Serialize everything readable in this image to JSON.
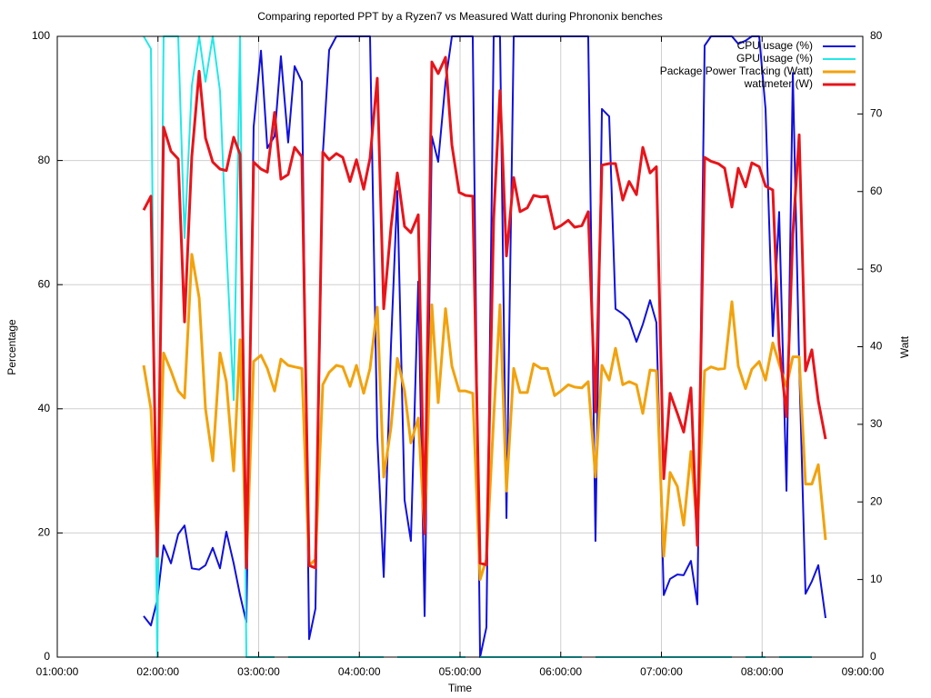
{
  "chart_data": {
    "type": "line",
    "title": "Comparing reported PPT by a Ryzen7 vs Measured Watt during Phrononix benches",
    "xlabel": "Time",
    "ylabel": "Percentage",
    "y2label": "Watt",
    "xlim": [
      1,
      9
    ],
    "xticks": [
      {
        "value": 1,
        "label": "01:00:00"
      },
      {
        "value": 2,
        "label": "02:00:00"
      },
      {
        "value": 3,
        "label": "03:00:00"
      },
      {
        "value": 4,
        "label": "04:00:00"
      },
      {
        "value": 5,
        "label": "05:00:00"
      },
      {
        "value": 6,
        "label": "06:00:00"
      },
      {
        "value": 7,
        "label": "07:00:00"
      },
      {
        "value": 8,
        "label": "08:00:00"
      },
      {
        "value": 9,
        "label": "09:00:00"
      }
    ],
    "ylim": [
      0,
      100
    ],
    "yticks": [
      0,
      20,
      40,
      60,
      80,
      100
    ],
    "y2lim": [
      0,
      80
    ],
    "y2ticks": [
      0,
      10,
      20,
      30,
      40,
      50,
      60,
      70,
      80
    ],
    "grid": true,
    "legend": "top right",
    "x": [
      1.858,
      1.93,
      1.993,
      2.056,
      2.129,
      2.201,
      2.264,
      2.336,
      2.409,
      2.472,
      2.544,
      2.616,
      2.679,
      2.752,
      2.815,
      2.878,
      2.95,
      3.023,
      3.086,
      3.158,
      3.221,
      3.293,
      3.357,
      3.429,
      3.501,
      3.564,
      3.637,
      3.7,
      3.772,
      3.835,
      3.907,
      3.971,
      4.043,
      4.106,
      4.178,
      4.242,
      4.314,
      4.377,
      4.449,
      4.512,
      4.585,
      4.648,
      4.72,
      4.783,
      4.856,
      4.919,
      4.991,
      5.054,
      5.126,
      5.199,
      5.262,
      5.334,
      5.397,
      5.461,
      5.533,
      5.596,
      5.668,
      5.731,
      5.804,
      5.867,
      5.939,
      6.002,
      6.075,
      6.138,
      6.21,
      6.273,
      6.345,
      6.409,
      6.481,
      6.544,
      6.616,
      6.679,
      6.752,
      6.815,
      6.887,
      6.95,
      7.023,
      7.086,
      7.158,
      7.221,
      7.293,
      7.357,
      7.429,
      7.492,
      7.564,
      7.628,
      7.7,
      7.763,
      7.835,
      7.898,
      7.971,
      8.034,
      8.106,
      8.169,
      8.242,
      8.305,
      8.368,
      8.431,
      8.494,
      8.558,
      8.63
    ],
    "series": [
      {
        "name": "CPU usage (%)",
        "color": "#1010dd",
        "values": [
          6.6,
          5.1,
          9.2,
          18,
          15.1,
          19.8,
          21.2,
          14.3,
          14.1,
          14.8,
          17.6,
          14.3,
          20.2,
          15.1,
          10,
          5.6,
          85.4,
          97.7,
          82,
          83.9,
          96.8,
          82.9,
          95.2,
          92.7,
          2.9,
          7.8,
          81,
          97.8,
          100,
          100,
          100,
          100,
          100,
          100,
          35.6,
          12.9,
          50.2,
          75.1,
          25.3,
          18.7,
          60.5,
          6.6,
          83.9,
          79.8,
          92.7,
          100,
          100,
          100,
          100,
          0,
          4.8,
          100,
          100,
          22.4,
          100,
          100,
          100,
          100,
          100,
          100,
          100,
          100,
          100,
          100,
          100,
          100,
          18.7,
          88.3,
          87.1,
          56.1,
          55.3,
          54.3,
          50.8,
          53.6,
          57.5,
          53.9,
          10,
          12.6,
          13.3,
          13.2,
          15.5,
          8.5,
          98.5,
          100,
          100,
          100,
          100,
          98.8,
          99.3,
          100,
          100,
          88.3,
          51.7,
          71.7,
          26.8,
          94.1,
          47.3,
          10.2,
          12.2,
          14.8,
          6.3
        ]
      },
      {
        "name": "GPU usage (%)",
        "color": "#22e8e8",
        "values": [
          100,
          98,
          0,
          100,
          100,
          100,
          67.5,
          92,
          100,
          92.7,
          100,
          91.2,
          66.3,
          41.4,
          100,
          0,
          0,
          0,
          0,
          0,
          null,
          0,
          0,
          0,
          0,
          0,
          0,
          0,
          0,
          0,
          0,
          0,
          0,
          0,
          0,
          0,
          null,
          0,
          0,
          0,
          0,
          0,
          0,
          0,
          0,
          0,
          0,
          0,
          null,
          0,
          0,
          0,
          0,
          0,
          0,
          0,
          0,
          0,
          0,
          0,
          0,
          0,
          0,
          0,
          0,
          null,
          0,
          0,
          0,
          0,
          0,
          0,
          0,
          0,
          0,
          0,
          0,
          0,
          0,
          0,
          0,
          0,
          0,
          0,
          0,
          0,
          0,
          null,
          0,
          0,
          0,
          0,
          null,
          0,
          0,
          0,
          0,
          0,
          0,
          null,
          null
        ]
      },
      {
        "name": "Package Power Tracking (Watt)",
        "color": "#f2a20c",
        "axis": "y2",
        "values": [
          37.6,
          32,
          13.8,
          39.2,
          36.9,
          34.3,
          33.4,
          51.9,
          46.3,
          32,
          25.3,
          39.2,
          35.5,
          24,
          40.9,
          11.5,
          38.1,
          38.9,
          37.2,
          34.3,
          38.4,
          37.6,
          37.4,
          37.2,
          11.8,
          12.6,
          35.1,
          36.7,
          37.6,
          37.4,
          34.9,
          37.6,
          34,
          37.2,
          45.1,
          23.2,
          29.6,
          38.5,
          34.3,
          27.6,
          30.8,
          16,
          45.4,
          32.8,
          44.9,
          37.5,
          34.3,
          34.3,
          34,
          10,
          12.6,
          30.8,
          45.4,
          21.4,
          37.2,
          34.1,
          34.1,
          37.8,
          37.2,
          37.2,
          33.7,
          34.3,
          35.1,
          34.8,
          34.7,
          35.5,
          23.2,
          37.6,
          35.7,
          39.8,
          35.1,
          35.5,
          35.1,
          31.4,
          37,
          36.9,
          13,
          23.8,
          22,
          17,
          26.5,
          16.2,
          36.9,
          37.4,
          37.1,
          37.2,
          45.8,
          37.5,
          34.6,
          37.1,
          38.1,
          35.7,
          40.5,
          37.8,
          34.9,
          38.7,
          38.7,
          22.3,
          22.3,
          24.8,
          15.1
        ]
      },
      {
        "name": "wattmeter (W)",
        "color": "#e8141a",
        "axis": "y2",
        "values": [
          57.6,
          59.4,
          13,
          68.3,
          65.2,
          64.2,
          43.2,
          64.5,
          75.5,
          66.9,
          63.8,
          62.9,
          62.7,
          67,
          64.8,
          11.5,
          63.8,
          62.9,
          62.5,
          70.2,
          61.6,
          62.2,
          65.7,
          64.5,
          11.8,
          11.5,
          65.1,
          64.1,
          64.9,
          64.4,
          61.3,
          64.1,
          60.3,
          64.3,
          74.6,
          44.9,
          55.4,
          62.4,
          55.5,
          54.7,
          57,
          15.9,
          76.7,
          75.2,
          77.3,
          66,
          59.9,
          59.5,
          59.4,
          12.1,
          11.9,
          56.5,
          73,
          51.7,
          61.8,
          57.4,
          57.9,
          59.5,
          59.3,
          59.4,
          55.2,
          55.6,
          56.3,
          55.4,
          55.6,
          57.4,
          31.6,
          63.4,
          63.6,
          63.6,
          58.9,
          61.3,
          59.6,
          65.7,
          62.4,
          63.2,
          23,
          34,
          31.4,
          29,
          34.7,
          14.4,
          64.4,
          63.9,
          63.6,
          63,
          58,
          63,
          60.6,
          63.7,
          63.2,
          60.7,
          60.2,
          40.2,
          31,
          54.5,
          67.3,
          36.9,
          39.6,
          33,
          28.1
        ]
      }
    ]
  }
}
